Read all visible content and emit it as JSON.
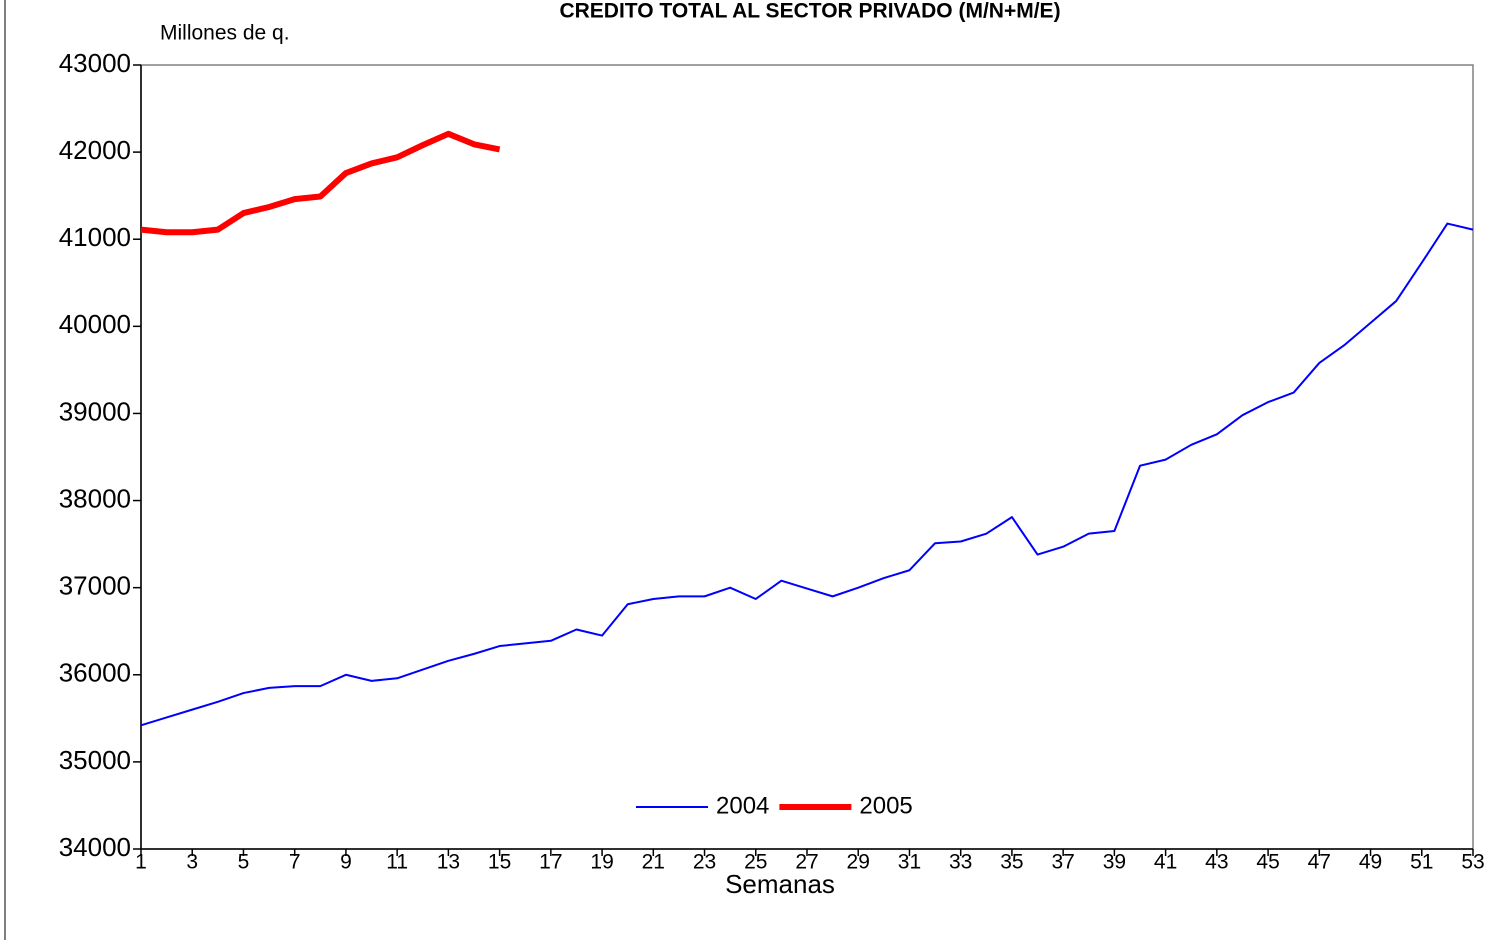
{
  "chart_data": {
    "type": "line",
    "title": "CREDITO TOTAL AL SECTOR PRIVADO (M/N+M/E)",
    "y_label": "Millones de q.",
    "x_label": "Semanas",
    "x": [
      1,
      2,
      3,
      4,
      5,
      6,
      7,
      8,
      9,
      10,
      11,
      12,
      13,
      14,
      15,
      16,
      17,
      18,
      19,
      20,
      21,
      22,
      23,
      24,
      25,
      26,
      27,
      28,
      29,
      30,
      31,
      32,
      33,
      34,
      35,
      36,
      37,
      38,
      39,
      40,
      41,
      42,
      43,
      44,
      45,
      46,
      47,
      48,
      49,
      50,
      51,
      52,
      53
    ],
    "xlim": [
      1,
      53
    ],
    "xticks": [
      1,
      3,
      5,
      7,
      9,
      11,
      13,
      15,
      17,
      19,
      21,
      23,
      25,
      27,
      29,
      31,
      33,
      35,
      37,
      39,
      41,
      43,
      45,
      47,
      49,
      51,
      53
    ],
    "ylim": [
      34000,
      43000
    ],
    "yticks": [
      34000,
      35000,
      36000,
      37000,
      38000,
      39000,
      40000,
      41000,
      42000,
      43000
    ],
    "legend": "bottom",
    "series": [
      {
        "name": "2004",
        "color": "#0000ff",
        "width": 2,
        "values": [
          35420,
          35510,
          35600,
          35690,
          35790,
          35850,
          35870,
          35870,
          36000,
          35930,
          35960,
          36060,
          36160,
          36240,
          36330,
          36360,
          36390,
          36520,
          36450,
          36810,
          36870,
          36900,
          36900,
          37000,
          36870,
          37080,
          36990,
          36900,
          37000,
          37110,
          37200,
          37510,
          37530,
          37620,
          37810,
          37380,
          37470,
          37620,
          37650,
          38400,
          38470,
          38640,
          38760,
          38980,
          39130,
          39240,
          39580,
          39790,
          40040,
          40290,
          40730,
          41180,
          41110
        ]
      },
      {
        "name": "2005",
        "color": "#ff0000",
        "width": 6,
        "values": [
          41110,
          41080,
          41080,
          41110,
          41300,
          41370,
          41460,
          41490,
          41760,
          41870,
          41940,
          42080,
          42210,
          42090,
          42030,
          null,
          null,
          null,
          null,
          null,
          null,
          null,
          null,
          null,
          null,
          null,
          null,
          null,
          null,
          null,
          null,
          null,
          null,
          null,
          null,
          null,
          null,
          null,
          null,
          null,
          null,
          null,
          null,
          null,
          null,
          null,
          null,
          null,
          null,
          null,
          null,
          null,
          null
        ]
      }
    ]
  }
}
